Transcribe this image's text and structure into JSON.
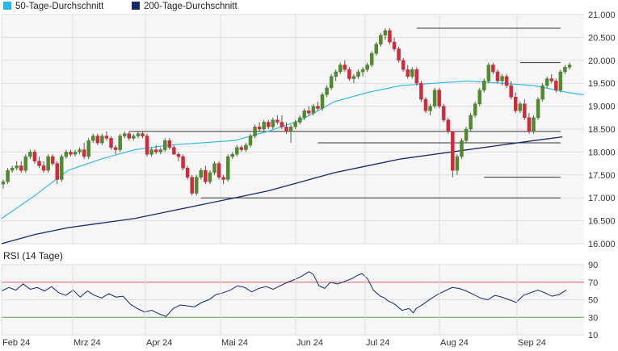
{
  "colors": {
    "ma50": "#29b6e8",
    "ma200": "#14286e",
    "up": "#4f8a2e",
    "down": "#d12a3c",
    "wick": "#555555",
    "level": "#333333",
    "rsi": "#14286e",
    "rsi_upper": "#e06060",
    "rsi_lower": "#5aa84a",
    "plot_bg": "#f6f6f6",
    "grid": "#dddddd"
  },
  "chart_data": [
    {
      "type": "candlestick",
      "legend_position": "top-left",
      "legend": [
        {
          "label": "50-Tage-Durchschnitt",
          "color": "#29b6e8"
        },
        {
          "label": "200-Tage-Durchschnitt",
          "color": "#14286e"
        }
      ],
      "y_ticks": [
        "21.000",
        "20.500",
        "20.000",
        "19.500",
        "19.000",
        "18.500",
        "18.000",
        "17.500",
        "17.000",
        "16.500",
        "16.000"
      ],
      "ylim": [
        16000,
        21000
      ],
      "grid": true,
      "candles": [
        [
          17300,
          17400,
          17200,
          17350
        ],
        [
          17350,
          17650,
          17300,
          17600
        ],
        [
          17600,
          17700,
          17550,
          17650
        ],
        [
          17650,
          17800,
          17600,
          17700
        ],
        [
          17700,
          17800,
          17550,
          17600
        ],
        [
          17600,
          17950,
          17550,
          17900
        ],
        [
          17900,
          18050,
          17850,
          18000
        ],
        [
          18000,
          18050,
          17750,
          17800
        ],
        [
          17800,
          17900,
          17650,
          17700
        ],
        [
          17700,
          17800,
          17550,
          17600
        ],
        [
          17600,
          17950,
          17550,
          17900
        ],
        [
          17900,
          17950,
          17700,
          17750
        ],
        [
          17750,
          17800,
          17300,
          17400
        ],
        [
          17400,
          17950,
          17350,
          17900
        ],
        [
          17900,
          18050,
          17850,
          18000
        ],
        [
          18000,
          18050,
          17900,
          17950
        ],
        [
          17950,
          18050,
          17900,
          18000
        ],
        [
          18000,
          18100,
          17950,
          18050
        ],
        [
          18050,
          18200,
          17850,
          17900
        ],
        [
          17900,
          18300,
          17850,
          18250
        ],
        [
          18250,
          18400,
          18200,
          18350
        ],
        [
          18350,
          18400,
          18150,
          18200
        ],
        [
          18200,
          18400,
          18150,
          18350
        ],
        [
          18350,
          18450,
          18250,
          18300
        ],
        [
          18300,
          18350,
          18050,
          18100
        ],
        [
          18100,
          18150,
          17950,
          18050
        ],
        [
          18050,
          18400,
          18000,
          18350
        ],
        [
          18350,
          18450,
          18300,
          18400
        ],
        [
          18400,
          18450,
          18250,
          18300
        ],
        [
          18300,
          18400,
          18250,
          18350
        ],
        [
          18350,
          18450,
          18300,
          18400
        ],
        [
          18400,
          18450,
          18300,
          18350
        ],
        [
          18350,
          18400,
          17900,
          17950
        ],
        [
          17950,
          18100,
          17900,
          18050
        ],
        [
          18050,
          18150,
          17950,
          18000
        ],
        [
          18000,
          18100,
          17950,
          18050
        ],
        [
          18050,
          18300,
          18000,
          18250
        ],
        [
          18250,
          18300,
          18050,
          18100
        ],
        [
          18100,
          18150,
          17950,
          17950
        ],
        [
          17950,
          18000,
          17800,
          17900
        ],
        [
          17900,
          17950,
          17600,
          17650
        ],
        [
          17650,
          17700,
          17400,
          17450
        ],
        [
          17450,
          17500,
          17050,
          17100
        ],
        [
          17100,
          17500,
          17050,
          17450
        ],
        [
          17450,
          17650,
          17400,
          17600
        ],
        [
          17600,
          17700,
          17300,
          17350
        ],
        [
          17350,
          17600,
          17300,
          17550
        ],
        [
          17550,
          17800,
          17500,
          17750
        ],
        [
          17750,
          17800,
          17400,
          17450
        ],
        [
          17450,
          17500,
          17300,
          17400
        ],
        [
          17400,
          17950,
          17350,
          17900
        ],
        [
          17900,
          18000,
          17850,
          17950
        ],
        [
          17950,
          18150,
          17900,
          18100
        ],
        [
          18100,
          18150,
          18000,
          18050
        ],
        [
          18050,
          18200,
          18000,
          18150
        ],
        [
          18150,
          18400,
          18100,
          18350
        ],
        [
          18350,
          18600,
          18300,
          18550
        ],
        [
          18550,
          18650,
          18450,
          18500
        ],
        [
          18500,
          18700,
          18450,
          18650
        ],
        [
          18650,
          18700,
          18500,
          18550
        ],
        [
          18550,
          18750,
          18500,
          18700
        ],
        [
          18700,
          18800,
          18600,
          18650
        ],
        [
          18650,
          18800,
          18500,
          18550
        ],
        [
          18550,
          18650,
          18400,
          18450
        ],
        [
          18450,
          18600,
          18200,
          18550
        ],
        [
          18550,
          18700,
          18500,
          18650
        ],
        [
          18650,
          18800,
          18600,
          18750
        ],
        [
          18750,
          18950,
          18700,
          18900
        ],
        [
          18900,
          19000,
          18800,
          18850
        ],
        [
          18850,
          19050,
          18800,
          19000
        ],
        [
          19000,
          19100,
          18900,
          18950
        ],
        [
          18950,
          19300,
          18900,
          19250
        ],
        [
          19250,
          19450,
          19200,
          19400
        ],
        [
          19400,
          19700,
          19350,
          19650
        ],
        [
          19650,
          19800,
          19550,
          19750
        ],
        [
          19750,
          19950,
          19700,
          19900
        ],
        [
          19900,
          20000,
          19750,
          19800
        ],
        [
          19800,
          19850,
          19550,
          19600
        ],
        [
          19600,
          19700,
          19500,
          19650
        ],
        [
          19650,
          19800,
          19600,
          19750
        ],
        [
          19750,
          19850,
          19650,
          19800
        ],
        [
          19800,
          19950,
          19750,
          19900
        ],
        [
          19900,
          20200,
          19850,
          20150
        ],
        [
          20150,
          20400,
          20100,
          20350
        ],
        [
          20350,
          20600,
          20300,
          20550
        ],
        [
          20550,
          20700,
          20450,
          20650
        ],
        [
          20650,
          20700,
          20350,
          20400
        ],
        [
          20400,
          20500,
          20200,
          20250
        ],
        [
          20250,
          20300,
          19950,
          20000
        ],
        [
          20000,
          20050,
          19750,
          19800
        ],
        [
          19800,
          19900,
          19600,
          19650
        ],
        [
          19650,
          19850,
          19600,
          19800
        ],
        [
          19800,
          19850,
          19450,
          19500
        ],
        [
          19500,
          19550,
          19100,
          19150
        ],
        [
          19150,
          19200,
          18850,
          18900
        ],
        [
          18900,
          19050,
          18800,
          19000
        ],
        [
          19000,
          19400,
          18950,
          19350
        ],
        [
          19350,
          19400,
          18950,
          19000
        ],
        [
          19000,
          19050,
          18650,
          18700
        ],
        [
          18700,
          18750,
          18400,
          18450
        ],
        [
          18450,
          18450,
          17450,
          17600
        ],
        [
          17600,
          17950,
          17500,
          17900
        ],
        [
          17900,
          18300,
          17850,
          18250
        ],
        [
          18250,
          18550,
          18200,
          18500
        ],
        [
          18500,
          18850,
          18450,
          18800
        ],
        [
          18800,
          19100,
          18750,
          19050
        ],
        [
          19050,
          19400,
          19000,
          19350
        ],
        [
          19350,
          19600,
          19300,
          19550
        ],
        [
          19550,
          19950,
          19500,
          19900
        ],
        [
          19900,
          19950,
          19700,
          19750
        ],
        [
          19750,
          19800,
          19500,
          19550
        ],
        [
          19550,
          19700,
          19450,
          19650
        ],
        [
          19650,
          19700,
          19400,
          19450
        ],
        [
          19450,
          19550,
          19150,
          19200
        ],
        [
          19200,
          19300,
          18850,
          18900
        ],
        [
          18900,
          19100,
          18850,
          19050
        ],
        [
          19050,
          19150,
          18700,
          18750
        ],
        [
          18750,
          18850,
          18400,
          18450
        ],
        [
          18450,
          18800,
          18400,
          18750
        ],
        [
          18750,
          19200,
          18700,
          19150
        ],
        [
          19150,
          19500,
          19100,
          19450
        ],
        [
          19450,
          19650,
          19400,
          19600
        ],
        [
          19600,
          19700,
          19500,
          19550
        ],
        [
          19550,
          19600,
          19300,
          19350
        ],
        [
          19350,
          19800,
          19300,
          19750
        ],
        [
          19750,
          19900,
          19700,
          19850
        ],
        [
          19850,
          19950,
          19800,
          19900
        ]
      ],
      "ma50": [
        [
          0,
          16550
        ],
        [
          20,
          17050
        ],
        [
          40,
          17600
        ],
        [
          60,
          17850
        ],
        [
          80,
          18050
        ],
        [
          100,
          18150
        ],
        [
          120,
          18200
        ],
        [
          140,
          18250
        ],
        [
          160,
          18450
        ],
        [
          180,
          18700
        ],
        [
          200,
          19100
        ],
        [
          220,
          19300
        ],
        [
          240,
          19450
        ],
        [
          260,
          19500
        ],
        [
          280,
          19550
        ],
        [
          300,
          19500
        ],
        [
          320,
          19450
        ],
        [
          340,
          19300
        ],
        [
          350,
          19250
        ]
      ],
      "ma200": [
        [
          0,
          16000
        ],
        [
          20,
          16200
        ],
        [
          40,
          16350
        ],
        [
          60,
          16450
        ],
        [
          80,
          16550
        ],
        [
          100,
          16700
        ],
        [
          120,
          16850
        ],
        [
          140,
          17000
        ],
        [
          160,
          17150
        ],
        [
          180,
          17350
        ],
        [
          200,
          17550
        ],
        [
          220,
          17700
        ],
        [
          240,
          17850
        ],
        [
          260,
          17950
        ],
        [
          280,
          18050
        ],
        [
          300,
          18150
        ],
        [
          320,
          18250
        ],
        [
          337,
          18330
        ]
      ],
      "levels": [
        {
          "y": 20700,
          "x_from": 92,
          "x_to": 124
        },
        {
          "y": 19950,
          "x_from": 115,
          "x_to": 124
        },
        {
          "y": 18450,
          "x_from": 28,
          "x_to": 124
        },
        {
          "y": 18200,
          "x_from": 70,
          "x_to": 124
        },
        {
          "y": 17450,
          "x_from": 107,
          "x_to": 124
        },
        {
          "y": 17000,
          "x_from": 44,
          "x_to": 124
        }
      ]
    },
    {
      "type": "line",
      "title": "RSI (14 Tage)",
      "y_ticks": [
        "90",
        "70",
        "50",
        "30",
        "10"
      ],
      "ylim": [
        10,
        90
      ],
      "lines": [
        70,
        30
      ],
      "x_ticks": [
        "Feb 24",
        "Mrz 24",
        "Apr 24",
        "Mai 24",
        "Jun 24",
        "Jul 24",
        "Aug 24",
        "Sep 24"
      ],
      "rsi": [
        [
          0,
          60
        ],
        [
          5,
          64
        ],
        [
          10,
          61
        ],
        [
          15,
          68
        ],
        [
          20,
          62
        ],
        [
          25,
          64
        ],
        [
          30,
          60
        ],
        [
          35,
          65
        ],
        [
          40,
          58
        ],
        [
          45,
          55
        ],
        [
          50,
          61
        ],
        [
          55,
          53
        ],
        [
          60,
          60
        ],
        [
          65,
          55
        ],
        [
          70,
          52
        ],
        [
          75,
          57
        ],
        [
          80,
          53
        ],
        [
          85,
          54
        ],
        [
          90,
          45
        ],
        [
          95,
          40
        ],
        [
          100,
          36
        ],
        [
          105,
          38
        ],
        [
          110,
          34
        ],
        [
          115,
          31
        ],
        [
          120,
          40
        ],
        [
          125,
          44
        ],
        [
          130,
          43
        ],
        [
          135,
          42
        ],
        [
          140,
          47
        ],
        [
          145,
          50
        ],
        [
          150,
          56
        ],
        [
          155,
          58
        ],
        [
          160,
          61
        ],
        [
          165,
          66
        ],
        [
          170,
          64
        ],
        [
          175,
          59
        ],
        [
          180,
          63
        ],
        [
          185,
          65
        ],
        [
          190,
          62
        ],
        [
          195,
          66
        ],
        [
          200,
          70
        ],
        [
          205,
          73
        ],
        [
          210,
          77
        ],
        [
          215,
          82
        ],
        [
          218,
          79
        ],
        [
          222,
          66
        ],
        [
          226,
          63
        ],
        [
          230,
          70
        ],
        [
          235,
          68
        ],
        [
          240,
          71
        ],
        [
          245,
          74
        ],
        [
          248,
          77
        ],
        [
          252,
          80
        ],
        [
          256,
          74
        ],
        [
          260,
          61
        ],
        [
          265,
          54
        ],
        [
          268,
          52
        ],
        [
          270,
          49
        ],
        [
          275,
          45
        ],
        [
          280,
          38
        ],
        [
          285,
          40
        ],
        [
          288,
          35
        ],
        [
          290,
          40
        ],
        [
          295,
          45
        ],
        [
          300,
          51
        ],
        [
          305,
          56
        ],
        [
          310,
          60
        ],
        [
          315,
          64
        ],
        [
          320,
          63
        ],
        [
          325,
          60
        ],
        [
          330,
          56
        ],
        [
          335,
          52
        ],
        [
          340,
          50
        ],
        [
          345,
          55
        ],
        [
          350,
          53
        ],
        [
          355,
          50
        ],
        [
          360,
          47
        ],
        [
          365,
          55
        ],
        [
          370,
          58
        ],
        [
          375,
          61
        ],
        [
          380,
          58
        ],
        [
          385,
          54
        ],
        [
          390,
          56
        ],
        [
          395,
          61
        ]
      ]
    }
  ]
}
